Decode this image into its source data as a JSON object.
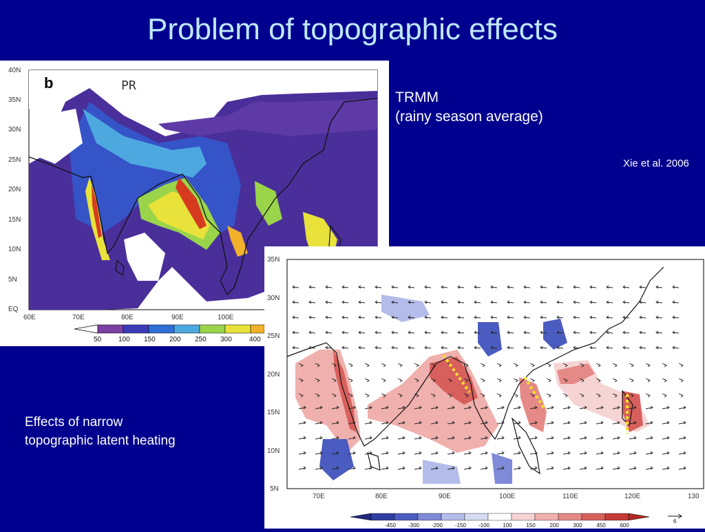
{
  "slide": {
    "title": "Problem of topographic effects",
    "trmm_line1": "TRMM",
    "trmm_line2": "(rainy season average)",
    "citation": "Xie et al. 2006",
    "effects_line1": "Effects of narrow",
    "effects_line2": "topographic latent heating"
  },
  "map1": {
    "panel_letter": "b",
    "panel_label": "PR",
    "lat_labels": [
      "40N",
      "35N",
      "30N",
      "25N",
      "20N",
      "15N",
      "10N",
      "5N",
      "EQ"
    ],
    "lon_labels": [
      "60E",
      "70E",
      "80E",
      "90E",
      "100E"
    ],
    "colorbar_labels": [
      "50",
      "100",
      "150",
      "200",
      "250",
      "300",
      "400"
    ],
    "colors": [
      "#7b3fa0",
      "#3b3bb8",
      "#2f6fd6",
      "#4ea8e0",
      "#9ad44a",
      "#e8e23a",
      "#f2b12a",
      "#d63b1f"
    ]
  },
  "map2": {
    "lat_labels": [
      "35N",
      "30N",
      "25N",
      "20N",
      "15N",
      "10N",
      "5N"
    ],
    "lon_labels": [
      "70E",
      "80E",
      "90E",
      "100E",
      "110E",
      "120E",
      "130"
    ],
    "colorbar_labels": [
      "-450",
      "-300",
      "-200",
      "-150",
      "-100",
      "100",
      "150",
      "200",
      "300",
      "450",
      "600"
    ],
    "vector_scale": "6",
    "colors": [
      "#2f3ea0",
      "#4b5cc0",
      "#7f8bd8",
      "#b4bde9",
      "#d7dcf3",
      "#ffffff",
      "#f6d4d4",
      "#f0b0ad",
      "#e58a86",
      "#d8605c",
      "#c43a34"
    ]
  }
}
